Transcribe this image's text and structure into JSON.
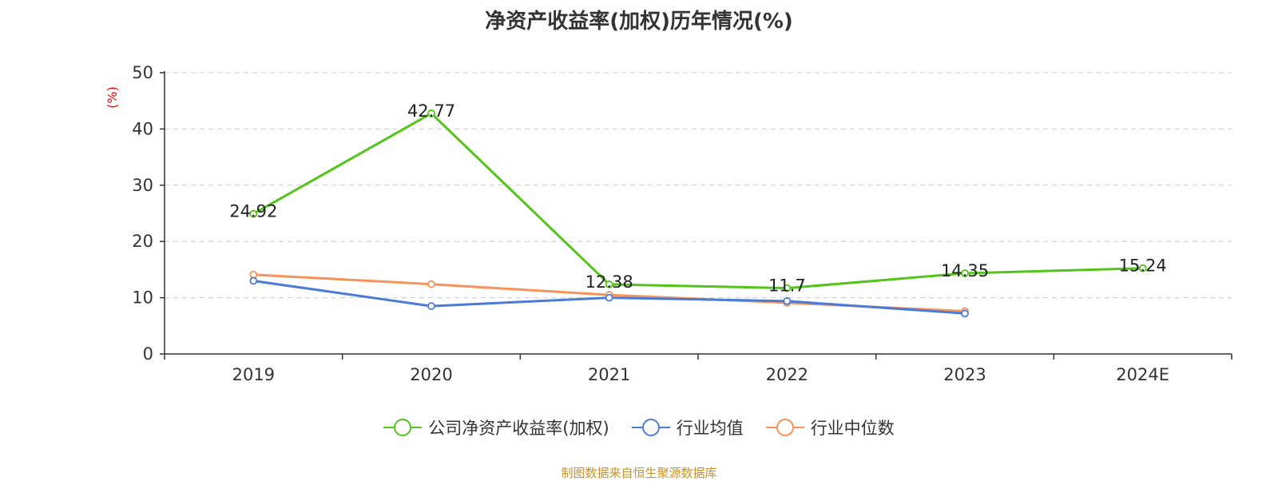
{
  "chart_data": {
    "type": "line",
    "title": "净资产收益率(加权)历年情况(%)",
    "ylabel": "(%)",
    "xlabel": "",
    "ylim": [
      0,
      50
    ],
    "yticks": [
      0,
      10,
      20,
      30,
      40,
      50
    ],
    "grid": true,
    "legend_position": "bottom",
    "categories": [
      "2019",
      "2020",
      "2021",
      "2022",
      "2023",
      "2024E"
    ],
    "series": [
      {
        "name": "公司净资产收益率(加权)",
        "color": "#52c41a",
        "values": [
          24.92,
          42.77,
          12.38,
          11.7,
          14.35,
          15.24
        ],
        "labels": [
          "24.92",
          "42.77",
          "12.38",
          "11.7",
          "14.35",
          "15.24"
        ]
      },
      {
        "name": "行业均值",
        "color": "#4a7bd8",
        "values": [
          13.0,
          8.5,
          10.0,
          9.4,
          7.2,
          null
        ]
      },
      {
        "name": "行业中位数",
        "color": "#f5935a",
        "values": [
          14.1,
          12.4,
          10.5,
          9.1,
          7.6,
          null
        ]
      }
    ]
  },
  "footer": {
    "source": "制图数据来自恒生聚源数据库"
  }
}
